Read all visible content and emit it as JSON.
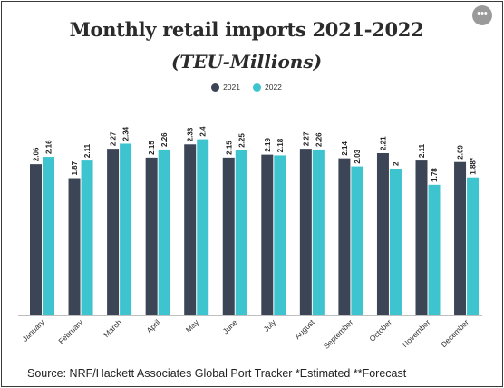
{
  "menu": {
    "glyph": "•••"
  },
  "chart_data": {
    "type": "bar",
    "title": "Monthly retail imports 2021-2022",
    "subtitle": "(TEU-Millions)",
    "categories": [
      "January",
      "February",
      "March",
      "April",
      "May",
      "June",
      "July",
      "August",
      "September",
      "October",
      "November",
      "December"
    ],
    "series": [
      {
        "name": "2021",
        "color": "#3b4555",
        "values": [
          2.06,
          1.87,
          2.27,
          2.15,
          2.33,
          2.15,
          2.19,
          2.27,
          2.14,
          2.21,
          2.11,
          2.09
        ],
        "labels": [
          "2.06",
          "1.87",
          "2.27",
          "2.15",
          "2.33",
          "2.15",
          "2.19",
          "2.27",
          "2.14",
          "2.21",
          "2.11",
          "2.09"
        ]
      },
      {
        "name": "2022",
        "color": "#3ec4cf",
        "values": [
          2.16,
          2.11,
          2.34,
          2.26,
          2.4,
          2.25,
          2.18,
          2.26,
          2.03,
          2.0,
          1.78,
          1.88
        ],
        "labels": [
          "2.16",
          "2.11",
          "2.34",
          "2.26",
          "2.4",
          "2.25",
          "2.18",
          "2.26",
          "2.03",
          "2",
          "1.78",
          "1.88*"
        ]
      }
    ],
    "ylim": [
      0,
      2.5
    ],
    "grid": false,
    "legend": "top-center",
    "source": "Source: NRF/Hackett Associates Global Port Tracker    *Estimated    **Forecast"
  }
}
